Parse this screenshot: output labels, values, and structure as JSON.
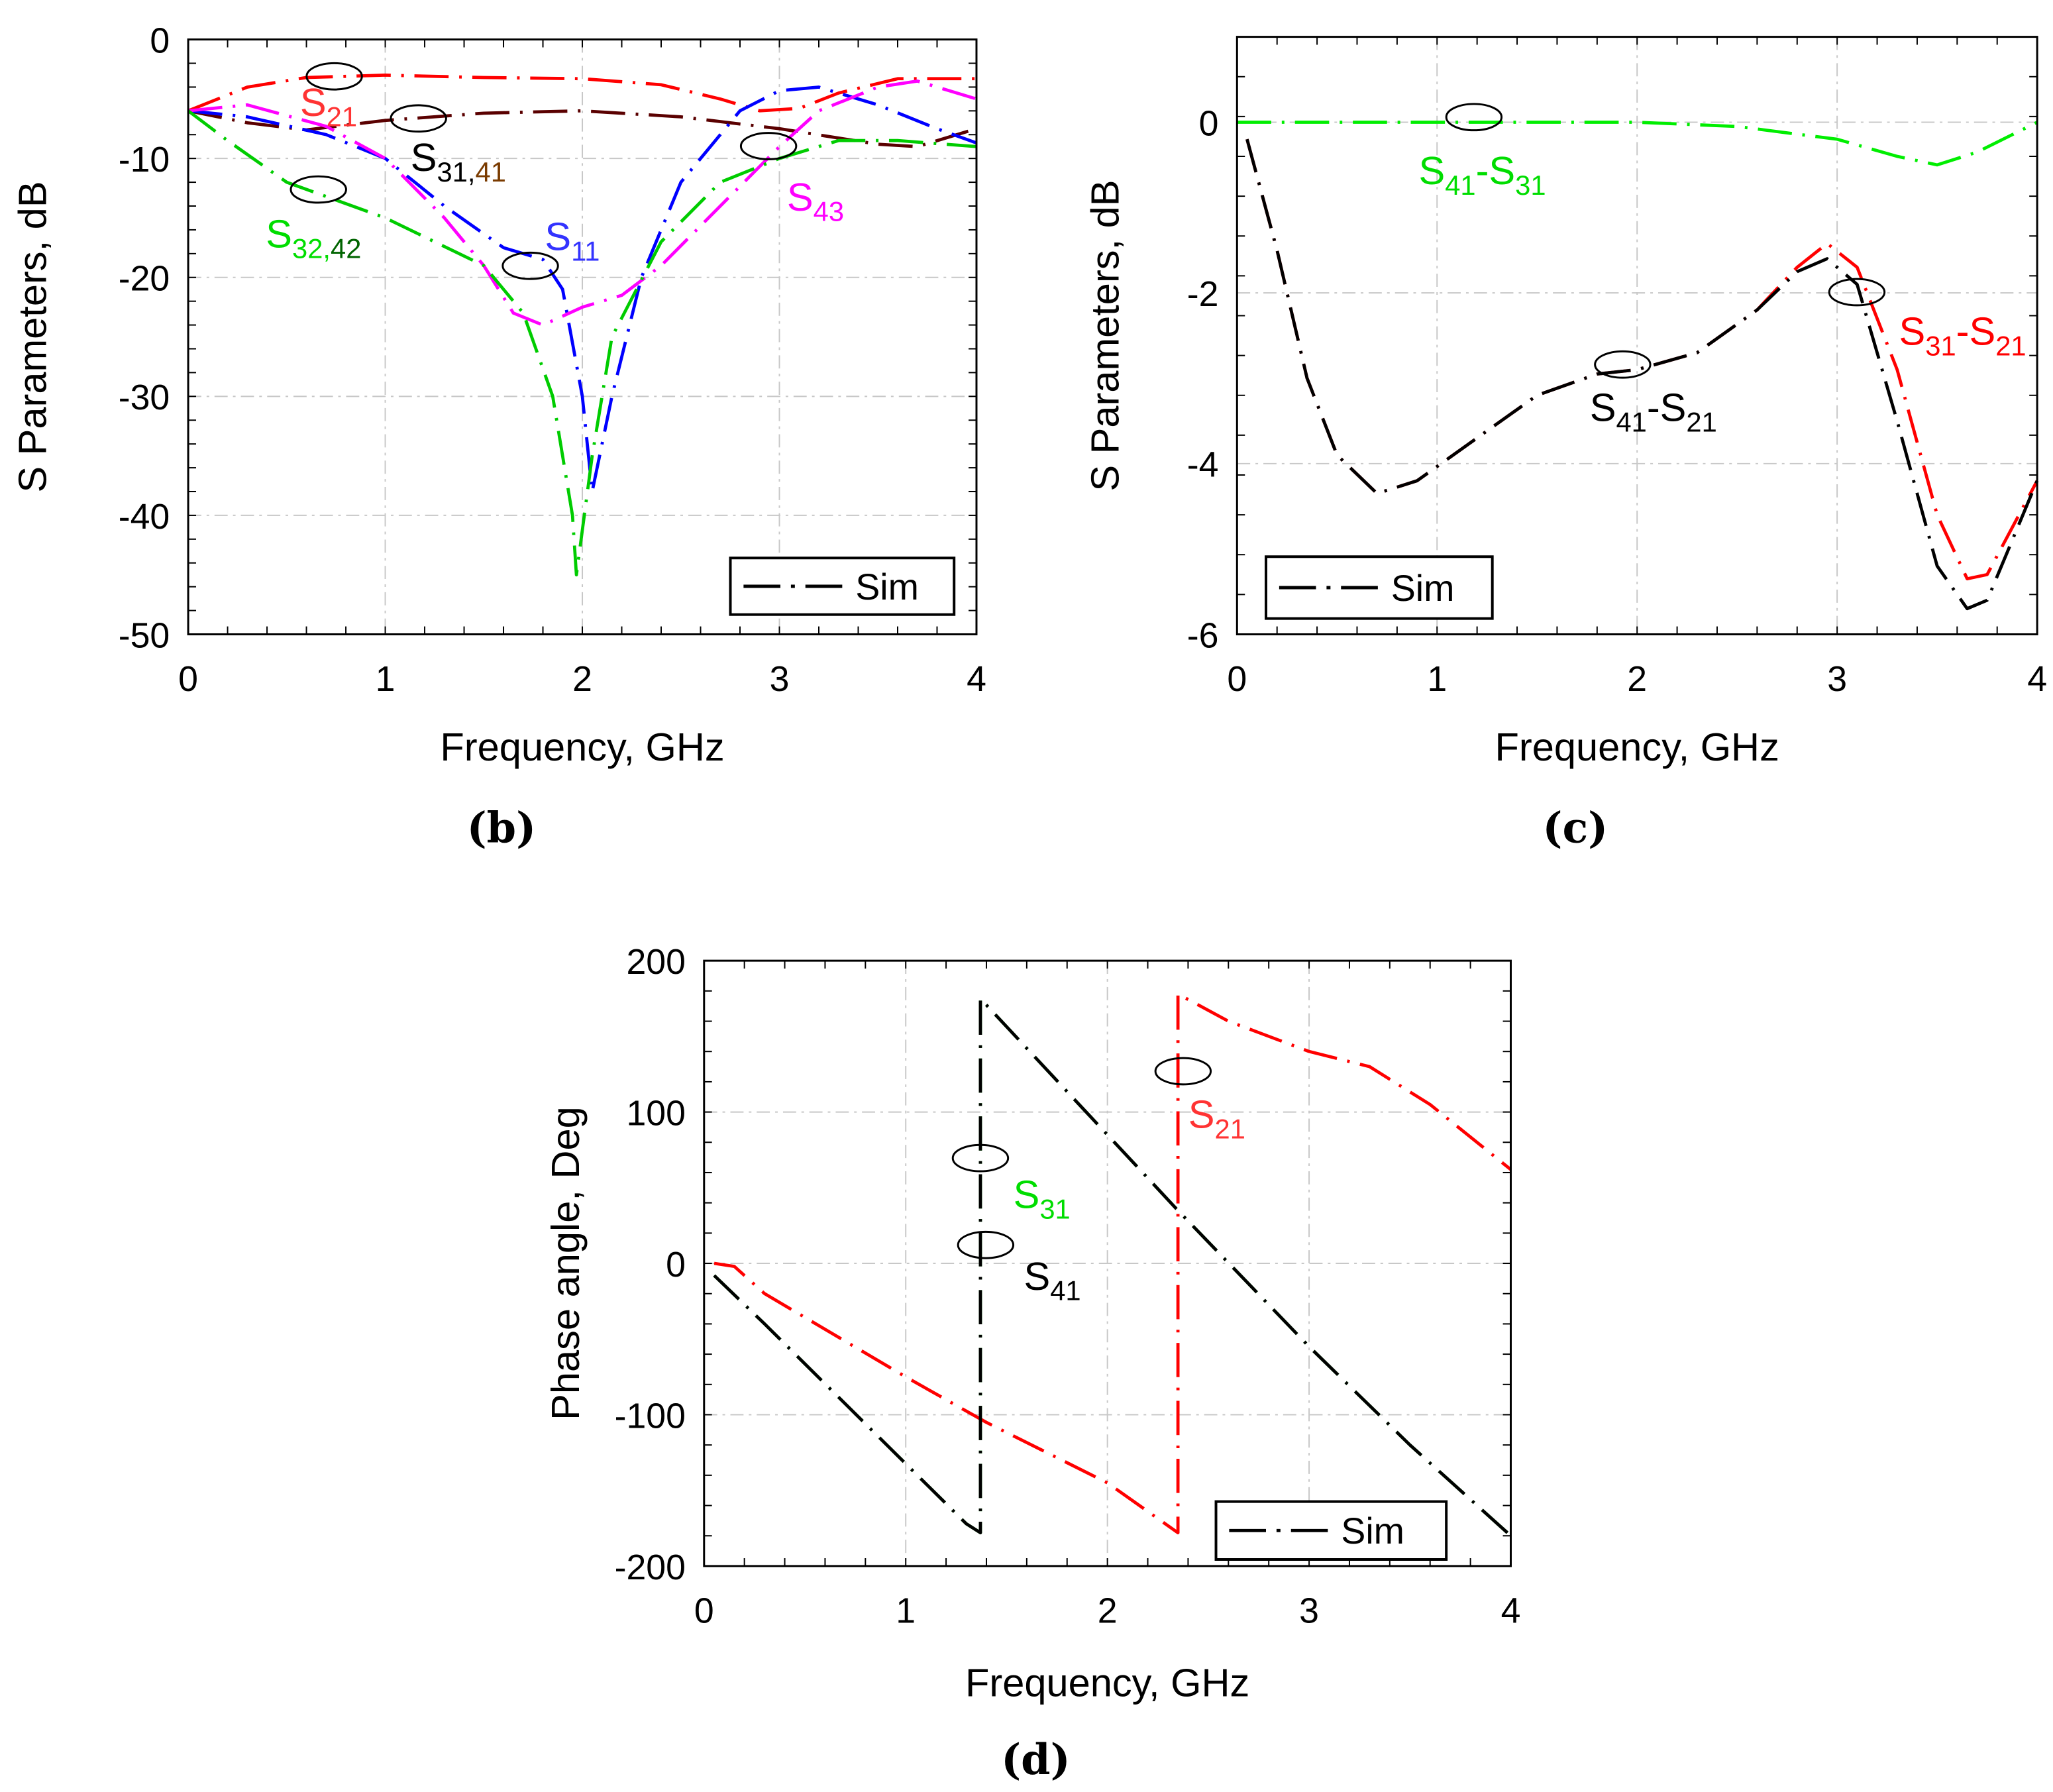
{
  "chart_data": [
    {
      "type": "line",
      "panel_label": "(b)",
      "xlabel": "Frequency, GHz",
      "ylabel": "S Parameters, dB",
      "xlim": [
        0,
        4
      ],
      "ylim": [
        -50,
        0
      ],
      "xticks": [
        0,
        1,
        2,
        3,
        4
      ],
      "yticks": [
        0,
        -10,
        -20,
        -30,
        -40,
        -50
      ],
      "grid": true,
      "legend": {
        "label": "Sim",
        "placement": "bottom-right"
      },
      "series": [
        {
          "name": "S21",
          "color": "#ff0000",
          "x": [
            0,
            0.3,
            0.6,
            1,
            1.5,
            2,
            2.4,
            2.7,
            2.9,
            3.1,
            3.3,
            3.6,
            4
          ],
          "y": [
            -6,
            -4,
            -3.2,
            -3,
            -3.2,
            -3.3,
            -3.8,
            -5,
            -6,
            -5.8,
            -4.5,
            -3.3,
            -3.3
          ]
        },
        {
          "name": "S31,41",
          "color": "#5a0000",
          "x": [
            0,
            0.3,
            0.6,
            1,
            1.5,
            2,
            2.5,
            3,
            3.5,
            3.7,
            4
          ],
          "y": [
            -6,
            -7,
            -7.6,
            -6.8,
            -6.2,
            -6,
            -6.5,
            -7.5,
            -8.8,
            -9,
            -7.5
          ]
        },
        {
          "name": "S11",
          "color": "#0000ff",
          "x": [
            0,
            0.3,
            0.7,
            1,
            1.3,
            1.6,
            1.8,
            1.9,
            2,
            2.05,
            2.15,
            2.3,
            2.5,
            2.8,
            3,
            3.2,
            3.5,
            3.8,
            4
          ],
          "y": [
            -6,
            -6.5,
            -8,
            -10,
            -14,
            -17.5,
            -18.5,
            -21,
            -30,
            -38,
            -30,
            -20,
            -12,
            -6,
            -4.3,
            -4,
            -5.5,
            -7.5,
            -8.7
          ]
        },
        {
          "name": "S43",
          "color": "#ff00ff",
          "x": [
            0,
            0.3,
            0.7,
            1,
            1.3,
            1.5,
            1.65,
            1.8,
            2,
            2.2,
            2.4,
            2.7,
            3,
            3.2,
            3.5,
            3.7,
            4
          ],
          "y": [
            -6,
            -5.5,
            -7.3,
            -10,
            -15,
            -19,
            -23,
            -24,
            -22.5,
            -21.5,
            -19,
            -14,
            -9,
            -6,
            -4,
            -3.5,
            -5
          ]
        },
        {
          "name": "S32,42",
          "color": "#00cc00",
          "x": [
            0,
            0.2,
            0.5,
            1,
            1.5,
            1.7,
            1.85,
            1.95,
            1.97,
            2.05,
            2.15,
            2.4,
            2.7,
            3,
            3.3,
            3.6,
            4
          ],
          "y": [
            -6,
            -8.5,
            -12,
            -15,
            -19,
            -23,
            -30,
            -40,
            -45,
            -35,
            -25,
            -17,
            -12,
            -10,
            -8.5,
            -8.5,
            -9
          ]
        }
      ],
      "labels": [
        {
          "parts": [
            "S",
            "21"
          ],
          "colors": [
            "#ff3333",
            "#ff3333"
          ]
        },
        {
          "parts": [
            "S",
            "31,",
            "41"
          ],
          "colors": [
            "#000000",
            "#000000",
            "#7a3b00"
          ]
        },
        {
          "parts": [
            "S",
            "32,",
            "42"
          ],
          "colors": [
            "#00dd00",
            "#00dd00",
            "#006400"
          ]
        },
        {
          "parts": [
            "S",
            "11"
          ],
          "colors": [
            "#3333ff",
            "#3333ff"
          ]
        },
        {
          "parts": [
            "S",
            "43"
          ],
          "colors": [
            "#ff00ff",
            "#ff00ff"
          ]
        }
      ]
    },
    {
      "type": "line",
      "panel_label": "(c)",
      "xlabel": "Frequency, GHz",
      "ylabel": "S Parameters, dB",
      "xlim": [
        0,
        4
      ],
      "ylim": [
        -6,
        1
      ],
      "xticks": [
        0,
        1,
        2,
        3,
        4
      ],
      "yticks": [
        0,
        -2,
        -4,
        -6
      ],
      "grid": true,
      "legend": {
        "label": "Sim",
        "placement": "bottom-left"
      },
      "series": [
        {
          "name": "S41-S31",
          "color": "#00ee00",
          "x": [
            0,
            1,
            2,
            2.5,
            3,
            3.3,
            3.5,
            3.7,
            4
          ],
          "y": [
            0,
            0,
            0,
            -0.05,
            -0.2,
            -0.4,
            -0.5,
            -0.35,
            0
          ]
        },
        {
          "name": "S31-S21",
          "color": "#ff0000",
          "x": [
            0.05,
            0.2,
            0.35,
            0.5,
            0.7,
            0.9,
            1.2,
            1.5,
            1.8,
            2,
            2.3,
            2.6,
            2.8,
            2.95,
            3.1,
            3.3,
            3.5,
            3.65,
            3.75,
            4
          ],
          "y": [
            -0.2,
            -1.5,
            -3,
            -3.9,
            -4.35,
            -4.2,
            -3.7,
            -3.2,
            -2.95,
            -2.9,
            -2.7,
            -2.2,
            -1.7,
            -1.42,
            -1.7,
            -2.9,
            -4.6,
            -5.35,
            -5.3,
            -4.2
          ]
        },
        {
          "name": "S41-S21",
          "color": "#000000",
          "x": [
            0.05,
            0.2,
            0.35,
            0.5,
            0.7,
            0.9,
            1.2,
            1.5,
            1.8,
            2,
            2.3,
            2.6,
            2.8,
            2.95,
            3.1,
            3.3,
            3.5,
            3.65,
            3.75,
            4
          ],
          "y": [
            -0.2,
            -1.5,
            -3,
            -3.9,
            -4.35,
            -4.2,
            -3.7,
            -3.2,
            -2.95,
            -2.9,
            -2.7,
            -2.2,
            -1.75,
            -1.6,
            -1.9,
            -3.5,
            -5.2,
            -5.7,
            -5.6,
            -4.2
          ]
        }
      ],
      "labels": [
        {
          "parts": [
            "S",
            "41",
            "-S",
            "31"
          ],
          "colors": [
            "#00dd00",
            "#00dd00",
            "#00dd00",
            "#00dd00"
          ]
        },
        {
          "parts": [
            "S",
            "41",
            "-S",
            "21"
          ],
          "colors": [
            "#000000",
            "#000000",
            "#000000",
            "#000000"
          ]
        },
        {
          "parts": [
            "S",
            "31",
            "-S",
            "21"
          ],
          "colors": [
            "#ff0000",
            "#ff0000",
            "#ff0000",
            "#ff0000"
          ]
        }
      ]
    },
    {
      "type": "line",
      "panel_label": "(d)",
      "xlabel": "Frequency, GHz",
      "ylabel": "Phase angle,  Deg",
      "xlim": [
        0,
        4
      ],
      "ylim": [
        -200,
        200
      ],
      "xticks": [
        0,
        1,
        2,
        3,
        4
      ],
      "yticks": [
        200,
        100,
        0,
        -100,
        -200
      ],
      "grid": true,
      "legend": {
        "label": "Sim",
        "placement": "bottom-right"
      },
      "series": [
        {
          "name": "S21",
          "color": "#ff0000",
          "x": [
            0.05,
            0.15,
            0.3,
            1,
            1.4,
            2,
            2.35,
            2.35,
            2.6,
            3,
            3.3,
            3.6,
            4
          ],
          "y": [
            0,
            -2,
            -20,
            -75,
            -105,
            -145,
            -178,
            178,
            160,
            140,
            130,
            105,
            62
          ]
        },
        {
          "name": "S31",
          "color": "#00dd00",
          "x": [
            0.05,
            0.3,
            1.3,
            1.37,
            1.37,
            2.35,
            3,
            3.5,
            4
          ],
          "y": [
            -8,
            -40,
            -172,
            -178,
            175,
            35,
            -55,
            -120,
            -180
          ]
        },
        {
          "name": "S41",
          "color": "#000000",
          "x": [
            0.05,
            0.3,
            1.3,
            1.37,
            1.37,
            2.35,
            3,
            3.5,
            4
          ],
          "y": [
            -8,
            -40,
            -172,
            -178,
            175,
            35,
            -55,
            -120,
            -180
          ]
        }
      ],
      "labels": [
        {
          "parts": [
            "S",
            "21"
          ],
          "colors": [
            "#ff3333",
            "#ff3333"
          ]
        },
        {
          "parts": [
            "S",
            "31"
          ],
          "colors": [
            "#00dd00",
            "#00dd00"
          ]
        },
        {
          "parts": [
            "S",
            "41"
          ],
          "colors": [
            "#000000",
            "#000000"
          ]
        }
      ]
    }
  ]
}
